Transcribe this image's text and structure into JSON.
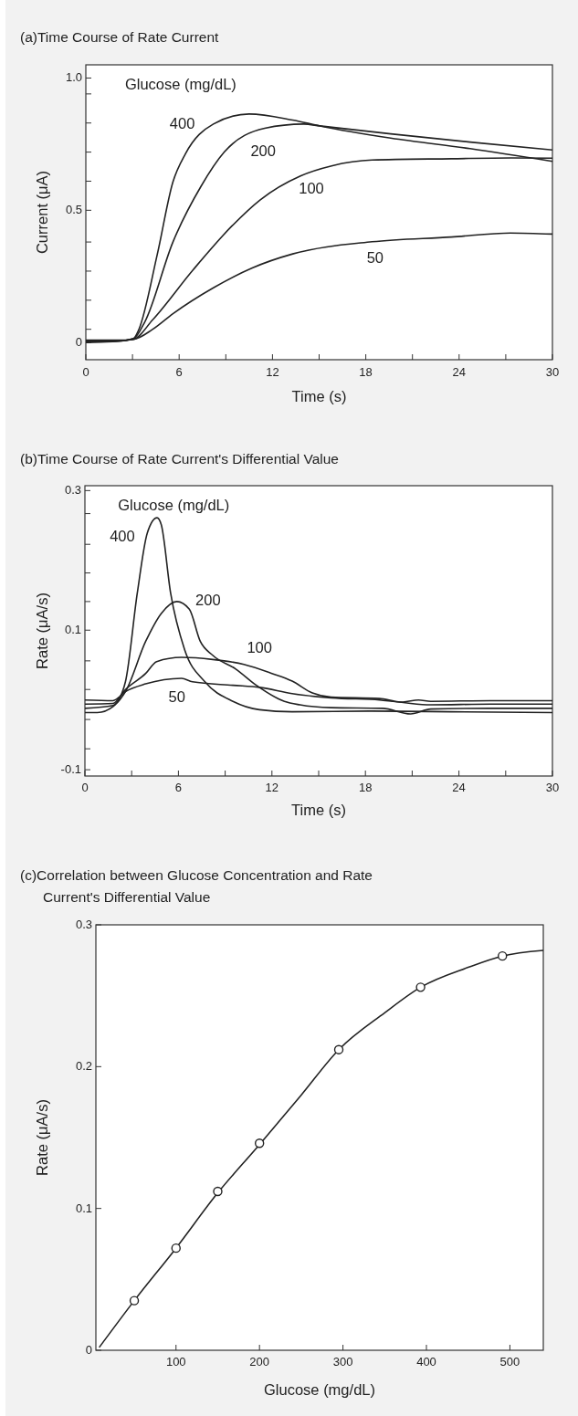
{
  "chart_data": [
    {
      "type": "line",
      "title": "(a)Time Course of Rate Current",
      "xlabel": "Time (s)",
      "ylabel": "Current (μA)",
      "legend_title": "Glucose (mg/dL)",
      "xlim": [
        0,
        30
      ],
      "ylim": [
        -0.065,
        1.05
      ],
      "xticks": [
        0,
        {
          "value": 3,
          "label": null
        },
        6,
        {
          "value": 9,
          "label": null
        },
        12,
        {
          "value": 15,
          "label": null
        },
        18,
        {
          "value": 21,
          "label": null
        },
        24,
        {
          "value": 27,
          "label": null
        },
        30
      ],
      "yticks": [
        0,
        {
          "value": 0.05,
          "label": null
        },
        {
          "value": 0.16,
          "label": null
        },
        {
          "value": 0.27,
          "label": null
        },
        {
          "value": 0.38,
          "label": null
        },
        0.5,
        {
          "value": 0.61,
          "label": null
        },
        {
          "value": 0.72,
          "label": null
        },
        {
          "value": 0.83,
          "label": null
        },
        {
          "value": 0.94,
          "label": null
        },
        {
          "value": 1,
          "label": "1.0"
        }
      ],
      "series": [
        {
          "name": "400",
          "color": "#222222",
          "x": [
            0,
            1,
            2,
            3.06,
            3.4,
            4.6,
            5.6,
            6.4,
            8.2,
            10.5,
            13.3,
            15.05,
            19.6,
            24.7,
            30
          ],
          "values": [
            0.0,
            0.002,
            0.004,
            0.015,
            0.048,
            0.335,
            0.607,
            0.713,
            0.826,
            0.864,
            0.841,
            0.819,
            0.773,
            0.733,
            0.685
          ]
        },
        {
          "name": "200",
          "color": "#222222",
          "x": [
            0,
            1,
            2,
            3.06,
            3.8,
            5.6,
            7.4,
            8.9,
            11.5,
            14.0,
            15.05,
            19.6,
            24.7,
            30
          ],
          "values": [
            0.003,
            0.004,
            0.005,
            0.014,
            0.079,
            0.38,
            0.59,
            0.72,
            0.81,
            0.826,
            0.819,
            0.789,
            0.758,
            0.728
          ]
        },
        {
          "name": "100",
          "color": "#222222",
          "x": [
            0,
            1,
            2,
            3.06,
            4.3,
            6.9,
            9.4,
            11.2,
            13.8,
            15.8,
            18.4,
            23.5,
            27.3,
            30
          ],
          "values": [
            0.006,
            0.006,
            0.007,
            0.012,
            0.086,
            0.275,
            0.441,
            0.539,
            0.63,
            0.668,
            0.69,
            0.695,
            0.698,
            0.697
          ]
        },
        {
          "name": "50",
          "color": "#222222",
          "x": [
            0,
            1,
            2,
            3.06,
            4.3,
            5.6,
            8.2,
            10.7,
            13.3,
            18.4,
            23.5,
            27.3,
            30
          ],
          "values": [
            0.009,
            0.009,
            0.009,
            0.012,
            0.05,
            0.109,
            0.207,
            0.282,
            0.335,
            0.381,
            0.399,
            0.414,
            0.41
          ]
        }
      ]
    },
    {
      "type": "line",
      "title": "(b)Time Course of Rate Current's Differential Value",
      "xlabel": "Time (s)",
      "ylabel": "Rate (μA/s)",
      "legend_title": "Glucose (mg/dL)",
      "xlim": [
        0,
        30
      ],
      "ylim": [
        -0.109,
        0.307
      ],
      "xticks": [
        0,
        {
          "value": 3,
          "label": null
        },
        6,
        {
          "value": 9,
          "label": null
        },
        12,
        {
          "value": 15,
          "label": null
        },
        18,
        {
          "value": 21,
          "label": null
        },
        24,
        {
          "value": 27,
          "label": null
        },
        30
      ],
      "yticks": [
        -0.1,
        {
          "value": -0.07,
          "label": null
        },
        {
          "value": -0.028,
          "label": null
        },
        {
          "value": 0.015,
          "label": null
        },
        {
          "value": 0.056,
          "label": null
        },
        0.1,
        {
          "value": 0.141,
          "label": null
        },
        {
          "value": 0.182,
          "label": null
        },
        {
          "value": 0.223,
          "label": null
        },
        {
          "value": 0.267,
          "label": null
        },
        0.3
      ],
      "series": [
        {
          "name": "400",
          "color": "#222222",
          "x": [
            0,
            0.8,
            1.83,
            2.6,
            3.36,
            4.0,
            4.63,
            4.9,
            5.5,
            6.4,
            7.7,
            9.5,
            11.2,
            13.3,
            18.4,
            23.5,
            30
          ],
          "values": [
            -0.018,
            -0.018,
            -0.009,
            0.026,
            0.153,
            0.239,
            0.261,
            0.251,
            0.153,
            0.072,
            0.026,
            -0.002,
            -0.014,
            -0.017,
            -0.016,
            -0.017,
            -0.018
          ]
        },
        {
          "name": "200",
          "color": "#222222",
          "x": [
            0,
            1.8,
            2.6,
            3.9,
            4.9,
            5.9,
            6.7,
            7.4,
            8.2,
            9.7,
            11,
            12.8,
            13.8,
            15.8,
            19.1,
            20.9,
            22.2,
            26,
            30
          ],
          "values": [
            -0.012,
            -0.008,
            0.012,
            0.084,
            0.124,
            0.141,
            0.13,
            0.084,
            0.064,
            0.044,
            0.021,
            -0.002,
            -0.007,
            -0.011,
            -0.012,
            -0.02,
            -0.013,
            -0.012,
            -0.012
          ]
        },
        {
          "name": "100",
          "color": "#222222",
          "x": [
            0,
            1.8,
            2.6,
            3.9,
            4.6,
            6.2,
            8.2,
            10.2,
            12,
            13.3,
            14.6,
            15.8,
            18.9,
            19.9,
            20.9,
            22.2,
            26,
            30
          ],
          "values": [
            -0.006,
            -0.005,
            0.015,
            0.038,
            0.055,
            0.061,
            0.058,
            0.051,
            0.038,
            0.027,
            0.01,
            0.004,
            0.002,
            -0.002,
            -0.005,
            -0.007,
            -0.006,
            -0.006
          ]
        },
        {
          "name": "50",
          "color": "#222222",
          "x": [
            0,
            1.8,
            2.6,
            3.9,
            6.2,
            6.9,
            9.5,
            11.2,
            13.3,
            15.8,
            18.9,
            20.4,
            21.4,
            22.2,
            26,
            30
          ],
          "values": [
            0.0,
            -0.001,
            0.012,
            0.023,
            0.031,
            0.026,
            0.021,
            0.018,
            0.009,
            0.003,
            0.0,
            -0.003,
            0.0,
            -0.002,
            -0.001,
            -0.001
          ]
        }
      ]
    },
    {
      "type": "scatter",
      "title": "(c)Correlation between Glucose Concentration and Rate Current's Differential Value",
      "xlabel": "Glucose (mg/dL)",
      "ylabel": "Rate (μA/s)",
      "xlim": [
        4,
        540
      ],
      "ylim": [
        0,
        0.3
      ],
      "marker": "circle",
      "xticks": [
        100,
        200,
        300,
        400,
        500
      ],
      "yticks": [
        0,
        0.1,
        0.2,
        0.3
      ],
      "series": [
        {
          "type": "line",
          "marker": "none",
          "color": "#222222",
          "x": [
            8,
            50,
            100,
            150,
            200,
            250,
            295,
            350,
            393,
            450,
            491,
            540
          ],
          "values": [
            0.002,
            0.035,
            0.072,
            0.111,
            0.145,
            0.18,
            0.212,
            0.238,
            0.256,
            0.27,
            0.278,
            0.282
          ]
        },
        {
          "color": "#222222",
          "x": [
            50,
            100,
            150,
            200,
            295,
            393,
            491
          ],
          "values": [
            0.035,
            0.072,
            0.112,
            0.146,
            0.212,
            0.256,
            0.278
          ]
        }
      ]
    }
  ]
}
